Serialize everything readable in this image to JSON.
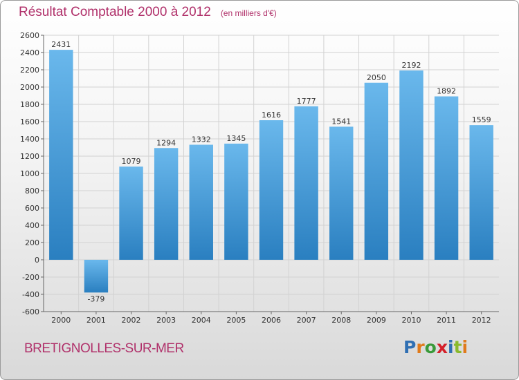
{
  "title": "Résultat Comptable 2000 à 2012",
  "subtitle": "(en milliers d'€)",
  "commune": "BRETIGNOLLES-SUR-MER",
  "logo": {
    "text": "Proxiti",
    "letter_colors": [
      "#2f6fb3",
      "#e07a1a",
      "#3a9a3a",
      "#d4202a",
      "#2f6fb3",
      "#8ab92d",
      "#e07a1a"
    ]
  },
  "colors": {
    "bar_light": "#6ab8ec",
    "bar_dark": "#2a7fc0",
    "title": "#b0306a",
    "grid": "#d2d2d2"
  },
  "chart_data": {
    "type": "bar",
    "title": "Résultat Comptable 2000 à 2012",
    "subtitle": "(en milliers d'€)",
    "categories": [
      "2000",
      "2001",
      "2002",
      "2003",
      "2004",
      "2005",
      "2006",
      "2007",
      "2008",
      "2009",
      "2010",
      "2011",
      "2012"
    ],
    "values": [
      2431,
      -379,
      1079,
      1294,
      1332,
      1345,
      1616,
      1777,
      1541,
      2050,
      2192,
      1892,
      1559
    ],
    "ylim": [
      -600,
      2600
    ],
    "yticks": [
      -600,
      -400,
      -200,
      0,
      200,
      400,
      600,
      800,
      1000,
      1200,
      1400,
      1600,
      1800,
      2000,
      2200,
      2400,
      2600
    ],
    "grid": true,
    "legend": "none"
  }
}
